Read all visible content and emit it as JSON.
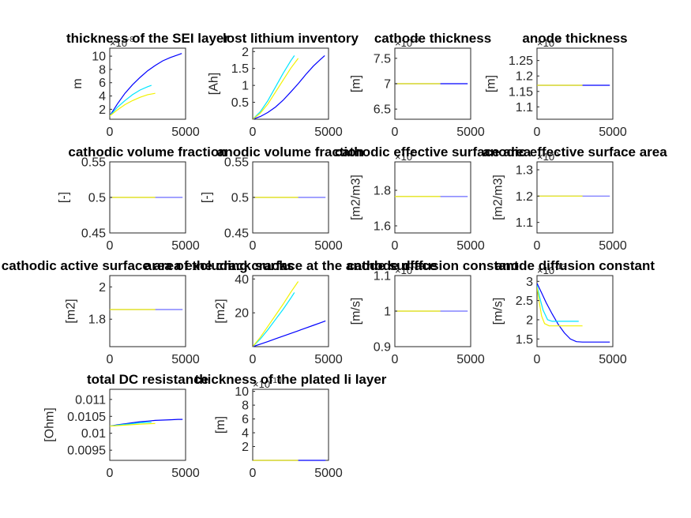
{
  "chart_data": [
    {
      "type": "line",
      "title": "thickness of the SEI layer",
      "ylabel": "m",
      "exponent": "×10^-8",
      "xlim": [
        0,
        5000
      ],
      "ylim": [
        0.5,
        11.2
      ],
      "xticks": [
        0,
        5000
      ],
      "xtick_labels": [
        "0",
        "5000"
      ],
      "yticks": [
        2,
        4,
        6,
        8,
        10
      ],
      "ytick_labels": [
        "2",
        "4",
        "6",
        "8",
        "10"
      ],
      "series": [
        {
          "name": "blue",
          "color": "#0000ff",
          "x": [
            0,
            500,
            1000,
            1500,
            2000,
            2500,
            3000,
            3500,
            4000,
            4500,
            4750
          ],
          "y": [
            1.0,
            2.8,
            4.4,
            5.7,
            6.8,
            7.8,
            8.6,
            9.3,
            9.8,
            10.2,
            10.4
          ]
        },
        {
          "name": "cyan",
          "color": "#00e5ff",
          "x": [
            0,
            500,
            1000,
            1500,
            2000,
            2500,
            2750
          ],
          "y": [
            1.0,
            2.3,
            3.3,
            4.2,
            4.9,
            5.4,
            5.6
          ]
        },
        {
          "name": "yellow",
          "color": "#f2f200",
          "x": [
            0,
            500,
            1000,
            1500,
            2000,
            2500,
            3000
          ],
          "y": [
            1.0,
            1.9,
            2.7,
            3.3,
            3.8,
            4.2,
            4.4
          ]
        }
      ]
    },
    {
      "type": "line",
      "title": "lost lithium inventory",
      "ylabel": "[Ah]",
      "exponent": "",
      "xlim": [
        0,
        5000
      ],
      "ylim": [
        0,
        2.1
      ],
      "xticks": [
        0,
        5000
      ],
      "xtick_labels": [
        "0",
        "5000"
      ],
      "yticks": [
        0.5,
        1,
        1.5,
        2
      ],
      "ytick_labels": [
        "0.5",
        "1",
        "1.5",
        "2"
      ],
      "series": [
        {
          "name": "blue",
          "color": "#0000ff",
          "x": [
            0,
            500,
            1000,
            1500,
            2000,
            2500,
            3000,
            3500,
            4000,
            4500,
            4750
          ],
          "y": [
            0,
            0.08,
            0.2,
            0.36,
            0.56,
            0.8,
            1.05,
            1.32,
            1.57,
            1.78,
            1.88
          ]
        },
        {
          "name": "cyan",
          "color": "#00e5ff",
          "x": [
            0,
            500,
            1000,
            1500,
            2000,
            2500,
            2750
          ],
          "y": [
            0,
            0.22,
            0.55,
            0.95,
            1.35,
            1.72,
            1.88
          ]
        },
        {
          "name": "yellow",
          "color": "#f2f200",
          "x": [
            0,
            500,
            1000,
            1500,
            2000,
            2500,
            3000
          ],
          "y": [
            0,
            0.18,
            0.45,
            0.8,
            1.15,
            1.5,
            1.8
          ]
        }
      ]
    },
    {
      "type": "line",
      "title": "cathode thickness",
      "ylabel": "[m]",
      "exponent": "×10^-5",
      "xlim": [
        0,
        5000
      ],
      "ylim": [
        6.3,
        7.7
      ],
      "xticks": [
        0,
        5000
      ],
      "xtick_labels": [
        "0",
        "5000"
      ],
      "yticks": [
        6.5,
        7,
        7.5
      ],
      "ytick_labels": [
        "6.5",
        "7",
        "7.5"
      ],
      "series": [
        {
          "name": "blue",
          "color": "#0000ff",
          "x": [
            0,
            4800
          ],
          "y": [
            7,
            7
          ]
        },
        {
          "name": "yellow",
          "color": "#f2f200",
          "x": [
            0,
            3000
          ],
          "y": [
            7,
            7
          ]
        }
      ]
    },
    {
      "type": "line",
      "title": "anode thickness",
      "ylabel": "[m]",
      "exponent": "×10^-4",
      "xlim": [
        0,
        5000
      ],
      "ylim": [
        1.06,
        1.29
      ],
      "xticks": [
        0,
        5000
      ],
      "xtick_labels": [
        "0",
        "5000"
      ],
      "yticks": [
        1.1,
        1.15,
        1.2,
        1.25
      ],
      "ytick_labels": [
        "1.1",
        "1.15",
        "1.2",
        "1.25"
      ],
      "series": [
        {
          "name": "blue",
          "color": "#0000ff",
          "x": [
            0,
            4800
          ],
          "y": [
            1.17,
            1.17
          ]
        },
        {
          "name": "yellow",
          "color": "#f2f200",
          "x": [
            0,
            3000
          ],
          "y": [
            1.17,
            1.17
          ]
        }
      ]
    },
    {
      "type": "line",
      "title": "cathodic volume fraction",
      "ylabel": "[-]",
      "exponent": "",
      "xlim": [
        0,
        5000
      ],
      "ylim": [
        0.45,
        0.55
      ],
      "xticks": [
        0,
        5000
      ],
      "xtick_labels": [
        "0",
        "5000"
      ],
      "yticks": [
        0.45,
        0.5,
        0.55
      ],
      "ytick_labels": [
        "0.45",
        "0.5",
        "0.55"
      ],
      "series": [
        {
          "name": "blue",
          "color": "#6a6aff",
          "x": [
            0,
            4800
          ],
          "y": [
            0.5,
            0.5
          ]
        },
        {
          "name": "yellow",
          "color": "#f2f200",
          "x": [
            0,
            3000
          ],
          "y": [
            0.5,
            0.5
          ]
        }
      ]
    },
    {
      "type": "line",
      "title": "anodic volume fraction",
      "ylabel": "[-]",
      "exponent": "",
      "xlim": [
        0,
        5000
      ],
      "ylim": [
        0.45,
        0.55
      ],
      "xticks": [
        0,
        5000
      ],
      "xtick_labels": [
        "0",
        "5000"
      ],
      "yticks": [
        0.45,
        0.5,
        0.55
      ],
      "ytick_labels": [
        "0.45",
        "0.5",
        "0.55"
      ],
      "series": [
        {
          "name": "blue",
          "color": "#6a6aff",
          "x": [
            0,
            4800
          ],
          "y": [
            0.5,
            0.5
          ]
        },
        {
          "name": "yellow",
          "color": "#f2f200",
          "x": [
            0,
            3000
          ],
          "y": [
            0.5,
            0.5
          ]
        }
      ]
    },
    {
      "type": "line",
      "title": "cathodic effective surface area",
      "ylabel": "[m2/m3]",
      "exponent": "×10^5",
      "xlim": [
        0,
        5000
      ],
      "ylim": [
        1.56,
        1.96
      ],
      "xticks": [
        0,
        5000
      ],
      "xtick_labels": [
        "0",
        "5000"
      ],
      "yticks": [
        1.6,
        1.8
      ],
      "ytick_labels": [
        "1.6",
        "1.8"
      ],
      "series": [
        {
          "name": "blue",
          "color": "#6a6aff",
          "x": [
            0,
            4800
          ],
          "y": [
            1.765,
            1.765
          ]
        },
        {
          "name": "yellow",
          "color": "#f2f200",
          "x": [
            0,
            3000
          ],
          "y": [
            1.765,
            1.765
          ]
        }
      ]
    },
    {
      "type": "line",
      "title": "anodic effective surface area",
      "ylabel": "[m2/m3]",
      "exponent": "×10^5",
      "xlim": [
        0,
        5000
      ],
      "ylim": [
        1.06,
        1.33
      ],
      "xticks": [
        0,
        5000
      ],
      "xtick_labels": [
        "0",
        "5000"
      ],
      "yticks": [
        1.1,
        1.2,
        1.3
      ],
      "ytick_labels": [
        "1.1",
        "1.2",
        "1.3"
      ],
      "series": [
        {
          "name": "blue",
          "color": "#6a6aff",
          "x": [
            0,
            4800
          ],
          "y": [
            1.2,
            1.2
          ]
        },
        {
          "name": "yellow",
          "color": "#f2f200",
          "x": [
            0,
            3000
          ],
          "y": [
            1.2,
            1.2
          ]
        }
      ]
    },
    {
      "type": "line",
      "title": "cathodic active surface area excluding cracks",
      "ylabel": "[m2]",
      "exponent": "",
      "xlim": [
        0,
        5000
      ],
      "ylim": [
        1.63,
        2.07
      ],
      "xticks": [
        0,
        5000
      ],
      "xtick_labels": [
        "0",
        "5000"
      ],
      "yticks": [
        1.8,
        2
      ],
      "ytick_labels": [
        "1.8",
        "2"
      ],
      "series": [
        {
          "name": "blue",
          "color": "#6a6aff",
          "x": [
            0,
            4800
          ],
          "y": [
            1.86,
            1.86
          ]
        },
        {
          "name": "yellow",
          "color": "#f2f200",
          "x": [
            0,
            3000
          ],
          "y": [
            1.86,
            1.86
          ]
        }
      ]
    },
    {
      "type": "line",
      "title": "area of the crack surface at the anode surface",
      "ylabel": "[m2]",
      "exponent": "",
      "xlim": [
        0,
        5000
      ],
      "ylim": [
        0,
        42
      ],
      "xticks": [
        0,
        5000
      ],
      "xtick_labels": [
        "0",
        "5000"
      ],
      "yticks": [
        20,
        40
      ],
      "ytick_labels": [
        "20",
        "40"
      ],
      "series": [
        {
          "name": "blue",
          "color": "#0000ff",
          "x": [
            0,
            500,
            1000,
            1500,
            2000,
            2500,
            3000,
            3500,
            4000,
            4500,
            4800
          ],
          "y": [
            0,
            1.5,
            3.0,
            4.6,
            6.2,
            7.8,
            9.4,
            11.0,
            12.6,
            14.2,
            15.2
          ]
        },
        {
          "name": "cyan",
          "color": "#00e5ff",
          "x": [
            0,
            500,
            1000,
            1500,
            2000,
            2500,
            2750
          ],
          "y": [
            0,
            4.5,
            10.0,
            16.0,
            22.0,
            28.5,
            32.0
          ]
        },
        {
          "name": "yellow",
          "color": "#f2f200",
          "x": [
            0,
            500,
            1000,
            1500,
            2000,
            2500,
            3000
          ],
          "y": [
            0,
            5.5,
            12.0,
            18.5,
            25.0,
            32.0,
            38.5
          ]
        }
      ]
    },
    {
      "type": "line",
      "title": "cathode diffusion constant",
      "ylabel": "[m/s]",
      "exponent": "×10^-13",
      "xlim": [
        0,
        5000
      ],
      "ylim": [
        0.9,
        1.1
      ],
      "xticks": [
        0,
        5000
      ],
      "xtick_labels": [
        "0",
        "5000"
      ],
      "yticks": [
        0.9,
        1,
        1.1
      ],
      "ytick_labels": [
        "0.9",
        "1",
        "1.1"
      ],
      "series": [
        {
          "name": "blue",
          "color": "#6a6aff",
          "x": [
            0,
            4800
          ],
          "y": [
            1,
            1
          ]
        },
        {
          "name": "yellow",
          "color": "#f2f200",
          "x": [
            0,
            3000
          ],
          "y": [
            1,
            1
          ]
        }
      ]
    },
    {
      "type": "line",
      "title": "anode diffusion constant",
      "ylabel": "[m/s]",
      "exponent": "×10^-13",
      "xlim": [
        0,
        5000
      ],
      "ylim": [
        1.3,
        3.15
      ],
      "xticks": [
        0,
        5000
      ],
      "xtick_labels": [
        "0",
        "5000"
      ],
      "yticks": [
        1.5,
        2,
        2.5,
        3
      ],
      "ytick_labels": [
        "1.5",
        "2",
        "2.5",
        "3"
      ],
      "series": [
        {
          "name": "blue",
          "color": "#0000ff",
          "x": [
            0,
            300,
            600,
            1000,
            1400,
            1800,
            2200,
            2600,
            3000,
            3500,
            4000,
            4800
          ],
          "y": [
            2.95,
            2.7,
            2.45,
            2.15,
            1.88,
            1.66,
            1.5,
            1.43,
            1.42,
            1.42,
            1.42,
            1.42
          ]
        },
        {
          "name": "cyan",
          "color": "#00e5ff",
          "x": [
            0,
            200,
            400,
            700,
            1000,
            1500,
            2000,
            2750
          ],
          "y": [
            2.9,
            2.55,
            2.25,
            2.0,
            1.96,
            1.96,
            1.96,
            1.96
          ]
        },
        {
          "name": "yellow",
          "color": "#f2f200",
          "x": [
            0,
            150,
            300,
            500,
            800,
            1200,
            2000,
            3000
          ],
          "y": [
            2.85,
            2.45,
            2.1,
            1.9,
            1.84,
            1.84,
            1.84,
            1.84
          ]
        }
      ]
    },
    {
      "type": "line",
      "title": "total DC resistance",
      "ylabel": "[Ohm]",
      "exponent": "",
      "xlim": [
        0,
        5000
      ],
      "ylim": [
        0.0092,
        0.0113
      ],
      "xticks": [
        0,
        5000
      ],
      "xtick_labels": [
        "0",
        "5000"
      ],
      "yticks": [
        0.0095,
        0.01,
        0.0105,
        0.011
      ],
      "ytick_labels": [
        "0.0095",
        "0.01",
        "0.0105",
        "0.011"
      ],
      "series": [
        {
          "name": "blue",
          "color": "#0000ff",
          "x": [
            0,
            500,
            1000,
            1500,
            2000,
            2500,
            3000,
            3500,
            4000,
            4500,
            4800
          ],
          "y": [
            0.01021,
            0.01025,
            0.01028,
            0.01031,
            0.01034,
            0.01036,
            0.01038,
            0.01039,
            0.0104,
            0.01041,
            0.01041
          ]
        },
        {
          "name": "cyan",
          "color": "#00e5ff",
          "x": [
            0,
            700,
            1400,
            2000,
            2750
          ],
          "y": [
            0.01021,
            0.01025,
            0.01028,
            0.01031,
            0.01033
          ]
        },
        {
          "name": "yellow",
          "color": "#f2f200",
          "x": [
            0,
            1000,
            2000,
            3000
          ],
          "y": [
            0.01021,
            0.01024,
            0.01027,
            0.01029
          ]
        }
      ]
    },
    {
      "type": "line",
      "title": "thickness of the plated li layer",
      "ylabel": "[m]",
      "exponent": "×10^-10",
      "xlim": [
        0,
        5000
      ],
      "ylim": [
        0,
        10.3
      ],
      "xticks": [
        0,
        5000
      ],
      "xtick_labels": [
        "0",
        "5000"
      ],
      "yticks": [
        2,
        4,
        6,
        8,
        10
      ],
      "ytick_labels": [
        "2",
        "4",
        "6",
        "8",
        "10"
      ],
      "series": [
        {
          "name": "blue",
          "color": "#0000ff",
          "x": [
            0,
            4800
          ],
          "y": [
            0,
            0
          ]
        },
        {
          "name": "yellow",
          "color": "#f2f200",
          "x": [
            0,
            3000
          ],
          "y": [
            0,
            0
          ]
        }
      ]
    }
  ]
}
